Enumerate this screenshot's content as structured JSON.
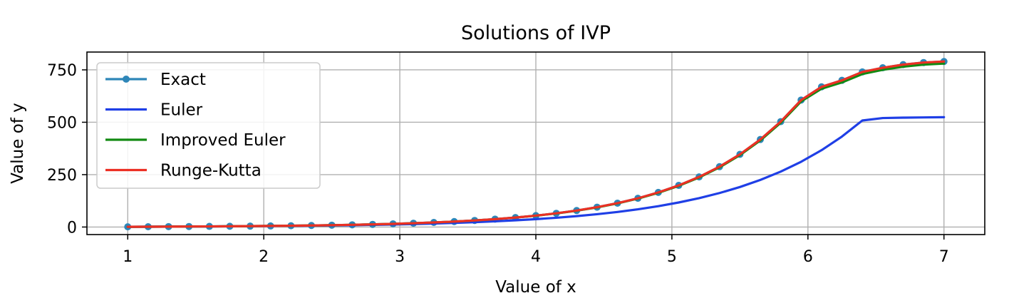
{
  "chart_data": {
    "type": "line",
    "title": "Solutions of IVP",
    "xlabel": "Value of x",
    "ylabel": "Value of y",
    "xlim": [
      0.7,
      7.3
    ],
    "ylim": [
      -36,
      835
    ],
    "xticks": [
      1,
      2,
      3,
      4,
      5,
      6,
      7
    ],
    "yticks": [
      0,
      250,
      500,
      750
    ],
    "grid": true,
    "legend_position": "top-left",
    "x": [
      1.0,
      1.15,
      1.3,
      1.45,
      1.6,
      1.75,
      1.9,
      2.05,
      2.2,
      2.35,
      2.5,
      2.65,
      2.8,
      2.95,
      3.1,
      3.25,
      3.4,
      3.55,
      3.7,
      3.85,
      4.0,
      4.15,
      4.3,
      4.45,
      4.6,
      4.75,
      4.9,
      5.05,
      5.2,
      5.35,
      5.5,
      5.65,
      5.8,
      5.95,
      6.1,
      6.25,
      6.4,
      6.55,
      6.7,
      6.85,
      7.0
    ],
    "series": [
      {
        "name": "Exact",
        "color": "#2e86b8",
        "markers": true,
        "values": [
          1.0,
          1.49,
          1.96,
          2.45,
          2.98,
          3.58,
          4.29,
          5.13,
          6.14,
          7.35,
          8.8,
          10.54,
          12.63,
          15.14,
          18.15,
          21.77,
          26.12,
          31.37,
          37.67,
          45.27,
          54.4,
          65.43,
          78.69,
          94.67,
          113.9,
          137.1,
          165.1,
          198.6,
          239.1,
          287.9,
          346.8,
          417.6,
          503.0,
          605.9,
          669.0,
          700.0,
          740.0,
          760.0,
          775.0,
          785.0,
          790.0
        ]
      },
      {
        "name": "Euler",
        "color": "#1f3fe6",
        "markers": false,
        "values": [
          1.0,
          1.45,
          1.86,
          2.28,
          2.74,
          3.26,
          3.86,
          4.56,
          5.38,
          6.33,
          7.45,
          8.76,
          10.3,
          12.11,
          14.24,
          16.74,
          19.68,
          23.13,
          27.19,
          31.97,
          37.58,
          44.19,
          51.97,
          61.12,
          71.9,
          84.59,
          99.53,
          117.1,
          137.8,
          162.2,
          190.9,
          224.7,
          264.5,
          311.4,
          366.6,
          431.7,
          508.3,
          520.0,
          522.0,
          523.0,
          524.0
        ]
      },
      {
        "name": "Improved Euler",
        "color": "#138a13",
        "markers": false,
        "values": [
          1.0,
          1.49,
          1.96,
          2.45,
          2.98,
          3.58,
          4.28,
          5.12,
          6.13,
          7.33,
          8.77,
          10.5,
          12.58,
          15.07,
          18.06,
          21.65,
          25.97,
          31.17,
          37.41,
          44.93,
          53.96,
          64.84,
          77.93,
          93.69,
          112.7,
          135.6,
          163.2,
          196.4,
          236.5,
          284.8,
          343.0,
          413.1,
          497.6,
          599.4,
          660.0,
          690.0,
          730.0,
          750.0,
          765.0,
          775.0,
          780.0
        ]
      },
      {
        "name": "Runge-Kutta",
        "color": "#ec3024",
        "markers": false,
        "values": [
          1.0,
          1.49,
          1.96,
          2.45,
          2.98,
          3.58,
          4.29,
          5.13,
          6.14,
          7.35,
          8.8,
          10.54,
          12.63,
          15.14,
          18.15,
          21.77,
          26.12,
          31.37,
          37.67,
          45.27,
          54.4,
          65.43,
          78.69,
          94.67,
          113.9,
          137.1,
          165.1,
          198.6,
          239.1,
          287.9,
          346.8,
          417.6,
          503.0,
          605.9,
          669.0,
          700.0,
          740.0,
          760.0,
          775.0,
          785.0,
          790.0
        ]
      }
    ]
  }
}
